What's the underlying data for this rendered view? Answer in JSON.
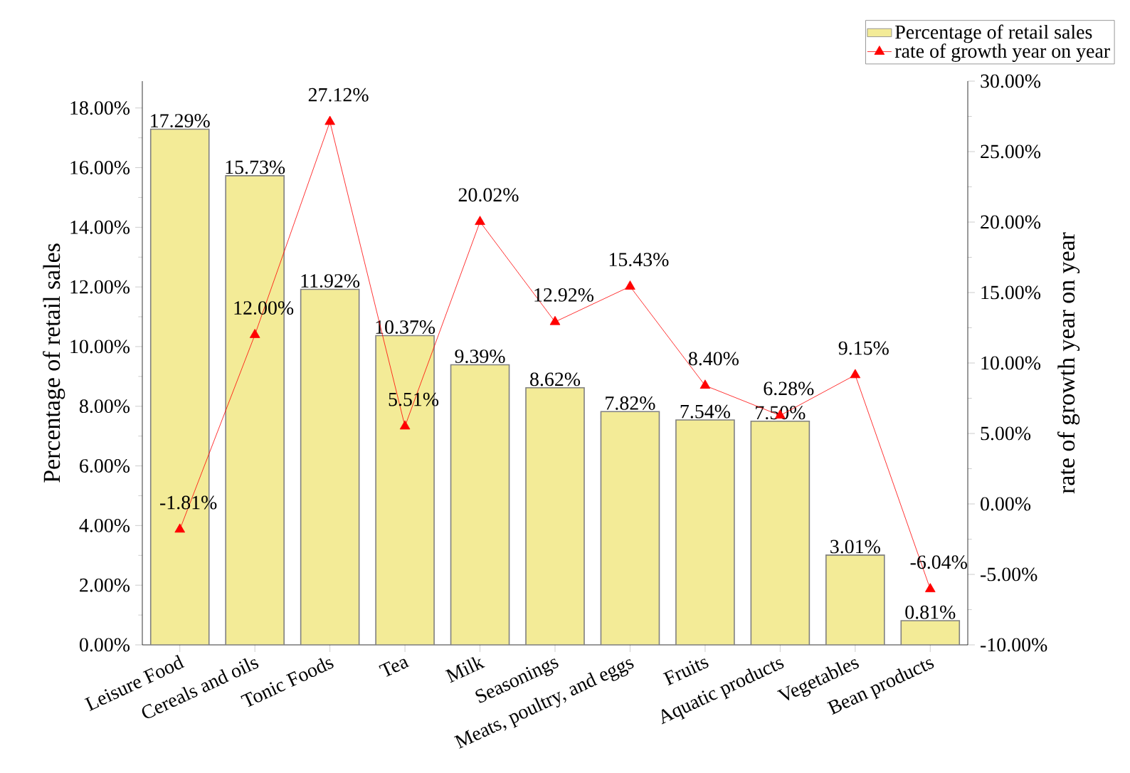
{
  "chart_data": {
    "type": "bar",
    "categories": [
      "Leisure Food",
      "Cereals and oils",
      "Tonic Foods",
      "Tea",
      "Milk",
      "Seasonings",
      "Meats, poultry, and eggs",
      "Fruits",
      "Aquatic products",
      "Vegetables",
      "Bean products"
    ],
    "ylabel": "Percentage of retail sales",
    "y2label": "rate of growth year on year",
    "ylim": [
      0,
      18.9
    ],
    "yticks": [
      {
        "value": 0,
        "label": "0.00%"
      },
      {
        "value": 2,
        "label": "2.00%"
      },
      {
        "value": 4,
        "label": "4.00%"
      },
      {
        "value": 6,
        "label": "6.00%"
      },
      {
        "value": 8,
        "label": "8.00%"
      },
      {
        "value": 10,
        "label": "10.00%"
      },
      {
        "value": 12,
        "label": "12.00%"
      },
      {
        "value": 14,
        "label": "14.00%"
      },
      {
        "value": 16,
        "label": "16.00%"
      },
      {
        "value": 18,
        "label": "18.00%"
      }
    ],
    "y2lim": [
      -10,
      30
    ],
    "y2ticks": [
      {
        "value": -10,
        "label": "-10.00%"
      },
      {
        "value": -5,
        "label": "-5.00%"
      },
      {
        "value": 0,
        "label": "0.00%"
      },
      {
        "value": 5,
        "label": "5.00%"
      },
      {
        "value": 10,
        "label": "10.00%"
      },
      {
        "value": 15,
        "label": "15.00%"
      },
      {
        "value": 20,
        "label": "20.00%"
      },
      {
        "value": 25,
        "label": "25.00%"
      },
      {
        "value": 30,
        "label": "30.00%"
      }
    ],
    "legend": "top right",
    "series": [
      {
        "name": "Percentage of retail sales",
        "color": "#f3eb97",
        "values": [
          17.29,
          15.73,
          11.92,
          10.37,
          9.39,
          8.62,
          7.82,
          7.54,
          7.5,
          3.01,
          0.81
        ],
        "value_labels": [
          "17.29%",
          "15.73%",
          "11.92%",
          "10.37%",
          "9.39%",
          "8.62%",
          "7.82%",
          "7.54%",
          "7.50%",
          "3.01%",
          "0.81%"
        ]
      },
      {
        "name": "rate of growth year on year",
        "type": "line",
        "axis": "y2",
        "color": "#ff0000",
        "marker": "triangle",
        "values": [
          -1.81,
          12.0,
          27.12,
          5.51,
          20.02,
          12.92,
          15.43,
          8.4,
          6.28,
          9.15,
          -6.04
        ],
        "value_labels": [
          "-1.81%",
          "12.00%",
          "27.12%",
          "5.51%",
          "20.02%",
          "12.92%",
          "15.43%",
          "8.40%",
          "6.28%",
          "9.15%",
          "-6.04%"
        ]
      }
    ]
  }
}
